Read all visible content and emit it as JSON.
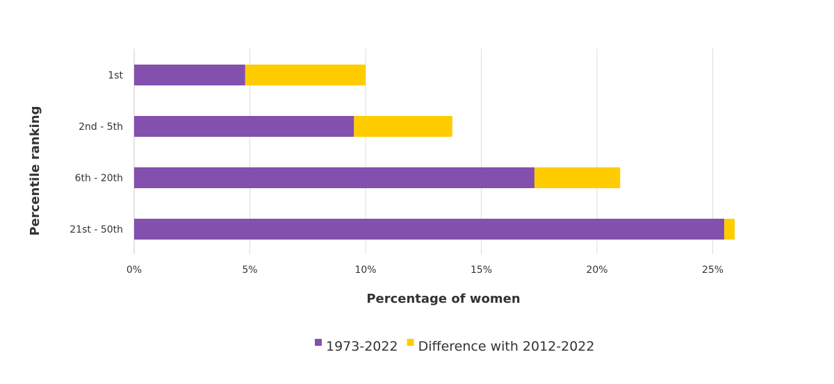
{
  "chart_data": {
    "type": "bar",
    "orientation": "horizontal",
    "stacked": true,
    "categories": [
      "1st",
      "2nd - 5th",
      "6th - 20th",
      "21st - 50th"
    ],
    "series": [
      {
        "name": "1973-2022",
        "color": "#8450AE",
        "values": [
          4.8,
          9.5,
          17.3,
          25.5
        ]
      },
      {
        "name": "Difference with 2012-2022",
        "color": "#FFCC00",
        "values": [
          5.2,
          4.25,
          3.7,
          0.45
        ]
      }
    ],
    "xlabel": "Percentage of women",
    "ylabel": "Percentile ranking",
    "xlim": [
      0,
      26
    ],
    "xticks": [
      0,
      5,
      10,
      15,
      20,
      25
    ],
    "xtick_labels": [
      "0%",
      "5%",
      "10%",
      "15%",
      "20%",
      "25%"
    ],
    "grid": true,
    "legend_position": "bottom"
  }
}
